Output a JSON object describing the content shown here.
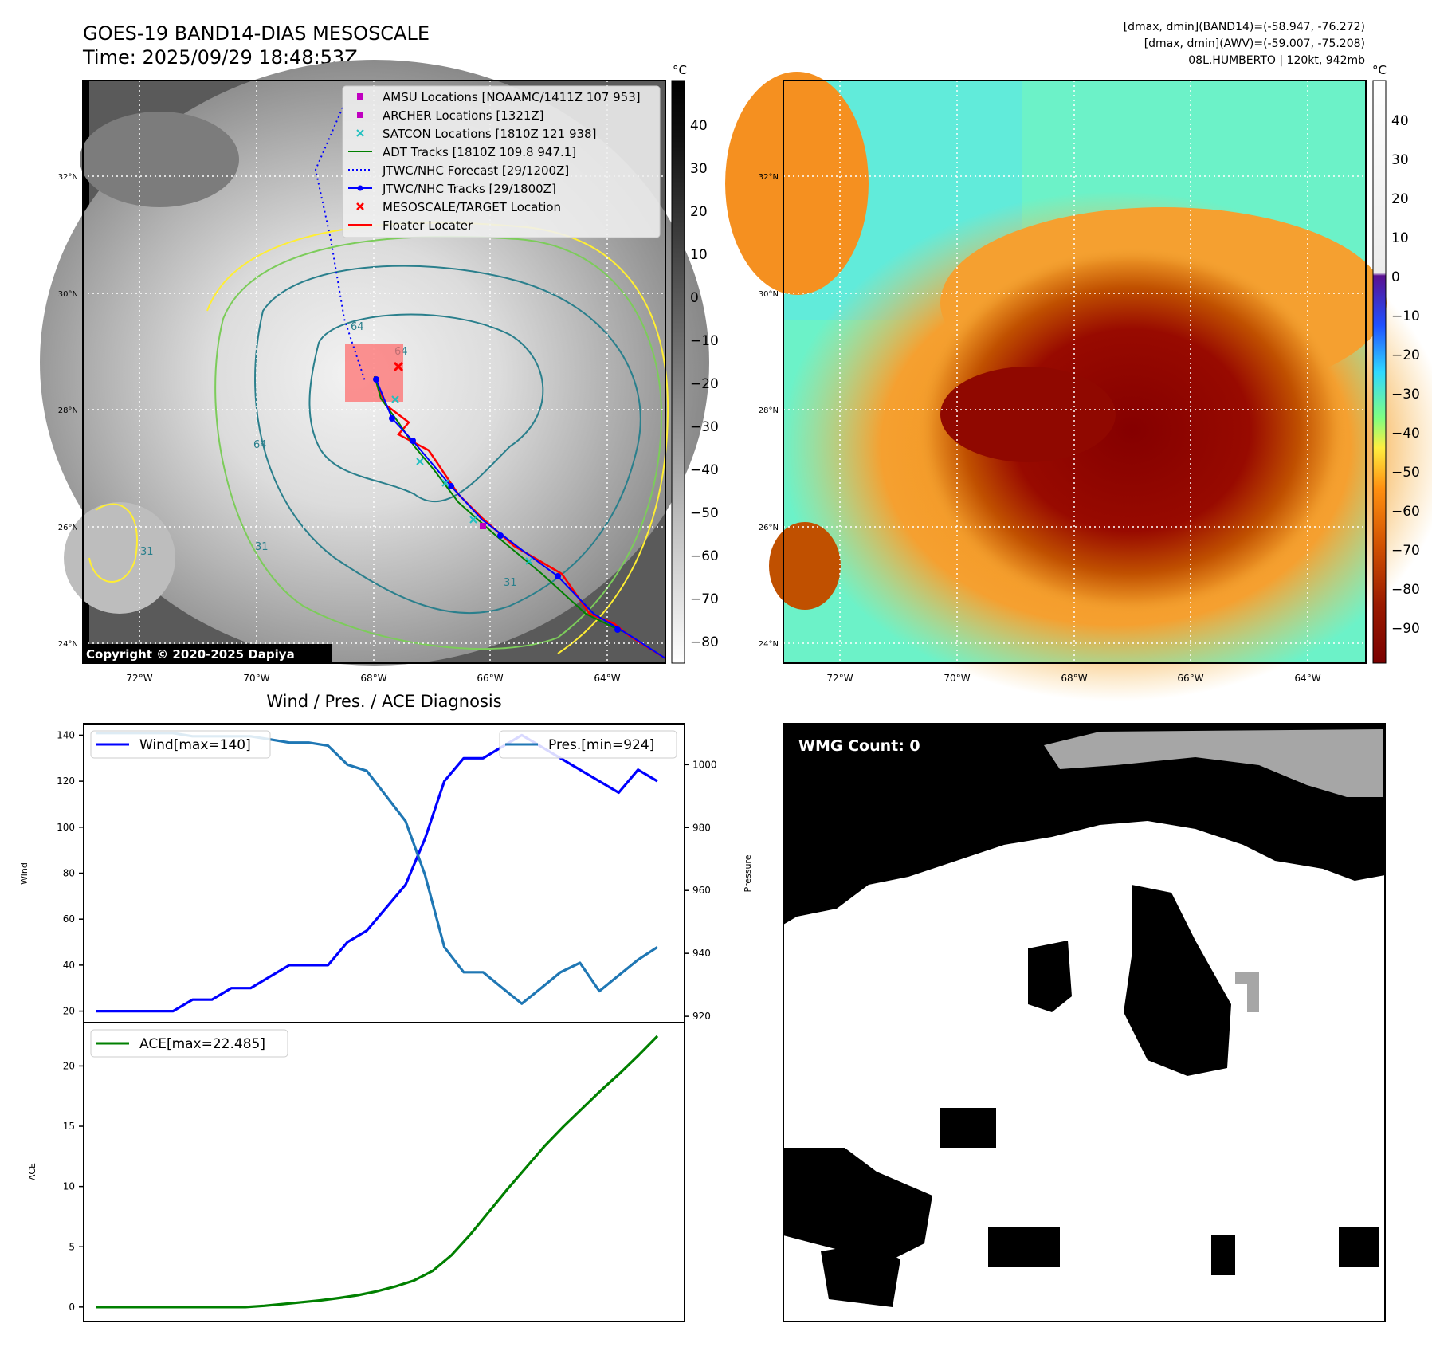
{
  "title": {
    "line1": "GOES-19 BAND14-DIAS MESOSCALE",
    "line2": "Time: 2025/09/29 18:48:53Z"
  },
  "info": {
    "line1": "[dmax, dmin](BAND14)=(-58.947, -76.272)",
    "line2": "[dmax, dmin](AWV)=(-59.007, -75.208)",
    "line3": "08L.HUMBERTO | 120kt, 942mb"
  },
  "map": {
    "lat_ticks": [
      "32°N",
      "30°N",
      "28°N",
      "26°N",
      "24°N"
    ],
    "lon_ticks": [
      "72°W",
      "70°W",
      "68°W",
      "66°W",
      "64°W"
    ],
    "copyright": "Copyright © 2020-2025 Dapiya",
    "contour_labels": [
      "64",
      "64",
      "64",
      "31",
      "31",
      "31",
      "31"
    ]
  },
  "legend": {
    "items": [
      {
        "label": "AMSU Locations [NOAAMC/1411Z 107 953]",
        "color": "#c000c0",
        "marker": "square"
      },
      {
        "label": "ARCHER Locations [1321Z]",
        "color": "#c000c0",
        "marker": "square"
      },
      {
        "label": "SATCON Locations [1810Z 121 938]",
        "color": "#20c0c0",
        "marker": "x"
      },
      {
        "label": "ADT Tracks [1810Z 109.8 947.1]",
        "color": "#008000",
        "marker": "line"
      },
      {
        "label": "JTWC/NHC Forecast [29/1200Z]",
        "color": "#0000ff",
        "marker": "dotted"
      },
      {
        "label": "JTWC/NHC Tracks [29/1800Z]",
        "color": "#0000ff",
        "marker": "line-dot"
      },
      {
        "label": "MESOSCALE/TARGET Location",
        "color": "#ff0000",
        "marker": "x"
      },
      {
        "label": "Floater Locater",
        "color": "#ff0000",
        "marker": "line"
      }
    ]
  },
  "colorbar_gray": {
    "unit": "°C",
    "ticks": [
      "40",
      "30",
      "20",
      "10",
      "0",
      "−10",
      "−20",
      "−30",
      "−40",
      "−50",
      "−60",
      "−70",
      "−80"
    ]
  },
  "colorbar_color": {
    "unit": "°C",
    "ticks": [
      "40",
      "30",
      "20",
      "10",
      "0",
      "−10",
      "−20",
      "−30",
      "−40",
      "−50",
      "−60",
      "−70",
      "−80",
      "−90"
    ]
  },
  "wmg": {
    "label": "WMG Count: 0"
  },
  "chart_data": [
    {
      "type": "line",
      "title": "Wind / Pres. / ACE Diagnosis",
      "ylabel": "Wind",
      "ylabel2": "Pressure",
      "ylim": [
        15,
        145
      ],
      "ylim2": [
        918,
        1013
      ],
      "yticks": [
        20,
        40,
        60,
        80,
        100,
        120,
        140
      ],
      "yticks2": [
        920,
        940,
        960,
        980,
        1000
      ],
      "series": [
        {
          "name": "Wind",
          "legend": "Wind[max=140]",
          "color": "#0000ff",
          "values": [
            20,
            20,
            20,
            20,
            20,
            25,
            25,
            30,
            30,
            35,
            40,
            40,
            40,
            50,
            55,
            65,
            75,
            95,
            120,
            130,
            130,
            135,
            140,
            135,
            130,
            125,
            120,
            115,
            125,
            120
          ]
        },
        {
          "name": "Pres.",
          "legend": "Pres.[min=924]",
          "color": "#1f77b4",
          "values": [
            1010,
            1010,
            1010,
            1010,
            1010,
            1009,
            1009,
            1009,
            1009,
            1008,
            1007,
            1007,
            1006,
            1000,
            998,
            990,
            982,
            965,
            942,
            934,
            934,
            929,
            924,
            929,
            934,
            937,
            928,
            933,
            938,
            942
          ]
        }
      ]
    },
    {
      "type": "line",
      "ylabel": "ACE",
      "ylim": [
        -1.2,
        23.6
      ],
      "yticks": [
        0,
        5,
        10,
        15,
        20
      ],
      "series": [
        {
          "name": "ACE",
          "legend": "ACE[max=22.485]",
          "color": "#008000",
          "values": [
            0,
            0,
            0,
            0,
            0,
            0,
            0,
            0,
            0,
            0.1,
            0.25,
            0.4,
            0.55,
            0.75,
            0.98,
            1.3,
            1.7,
            2.2,
            3.0,
            4.3,
            6.0,
            7.9,
            9.8,
            11.6,
            13.4,
            15.0,
            16.5,
            18.0,
            19.4,
            20.9,
            22.485
          ]
        }
      ]
    }
  ]
}
